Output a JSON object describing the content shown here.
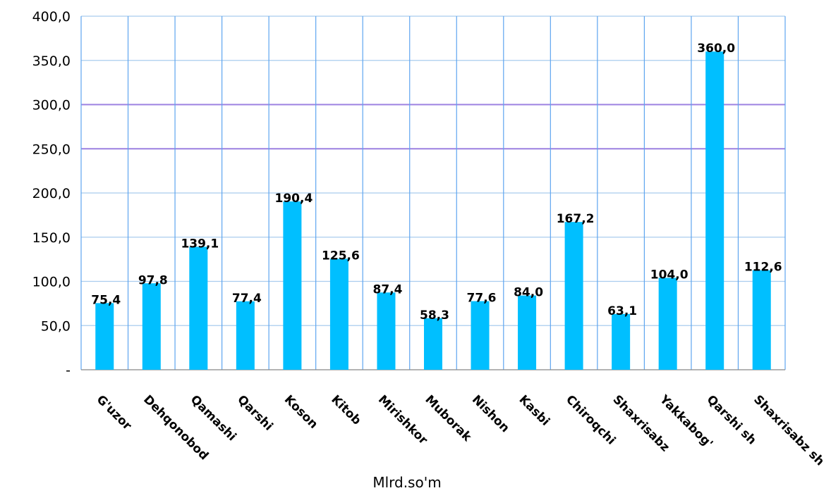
{
  "chart_data": {
    "type": "bar",
    "categories": [
      "G'uzor",
      "Dehqonobod",
      "Qamashi",
      "Qarshi",
      "Koson",
      "Kitob",
      "Mirishkor",
      "Muborak",
      "Nishon",
      "Kasbi",
      "Chiroqchi",
      "Shaxrisabz",
      "Yakkabog'",
      "Qarshi sh",
      "Shaxrisabz sh"
    ],
    "values": [
      75.4,
      97.8,
      139.1,
      77.4,
      190.4,
      125.6,
      87.4,
      58.3,
      77.6,
      84.0,
      167.2,
      63.1,
      104.0,
      360.0,
      112.6
    ],
    "data_labels": [
      "75,4",
      "97,8",
      "139,1",
      "77,4",
      "190,4",
      "125,6",
      "87,4",
      "58,3",
      "77,6",
      "84,0",
      "167,2",
      "63,1",
      "104,0",
      "360,0",
      "112,6"
    ],
    "yticks": [
      {
        "value": 0,
        "label": "-"
      },
      {
        "value": 50,
        "label": "50,0"
      },
      {
        "value": 100,
        "label": "100,0"
      },
      {
        "value": 150,
        "label": "150,0"
      },
      {
        "value": 200,
        "label": "200,0"
      },
      {
        "value": 250,
        "label": "250,0"
      },
      {
        "value": 300,
        "label": "300,0"
      },
      {
        "value": 350,
        "label": "350,0"
      },
      {
        "value": 400,
        "label": "400,0"
      }
    ],
    "ylim": [
      0,
      400
    ],
    "title": "",
    "xlabel": "Mlrd.so'm",
    "ylabel": "",
    "grid": true,
    "legend": "none",
    "colors": {
      "bar": "#00BFFF",
      "grid_light": "#A9CCEE",
      "grid_major": "#9C80E0",
      "vertical_grid": "#5EA5F0",
      "axis": "#888888"
    }
  }
}
